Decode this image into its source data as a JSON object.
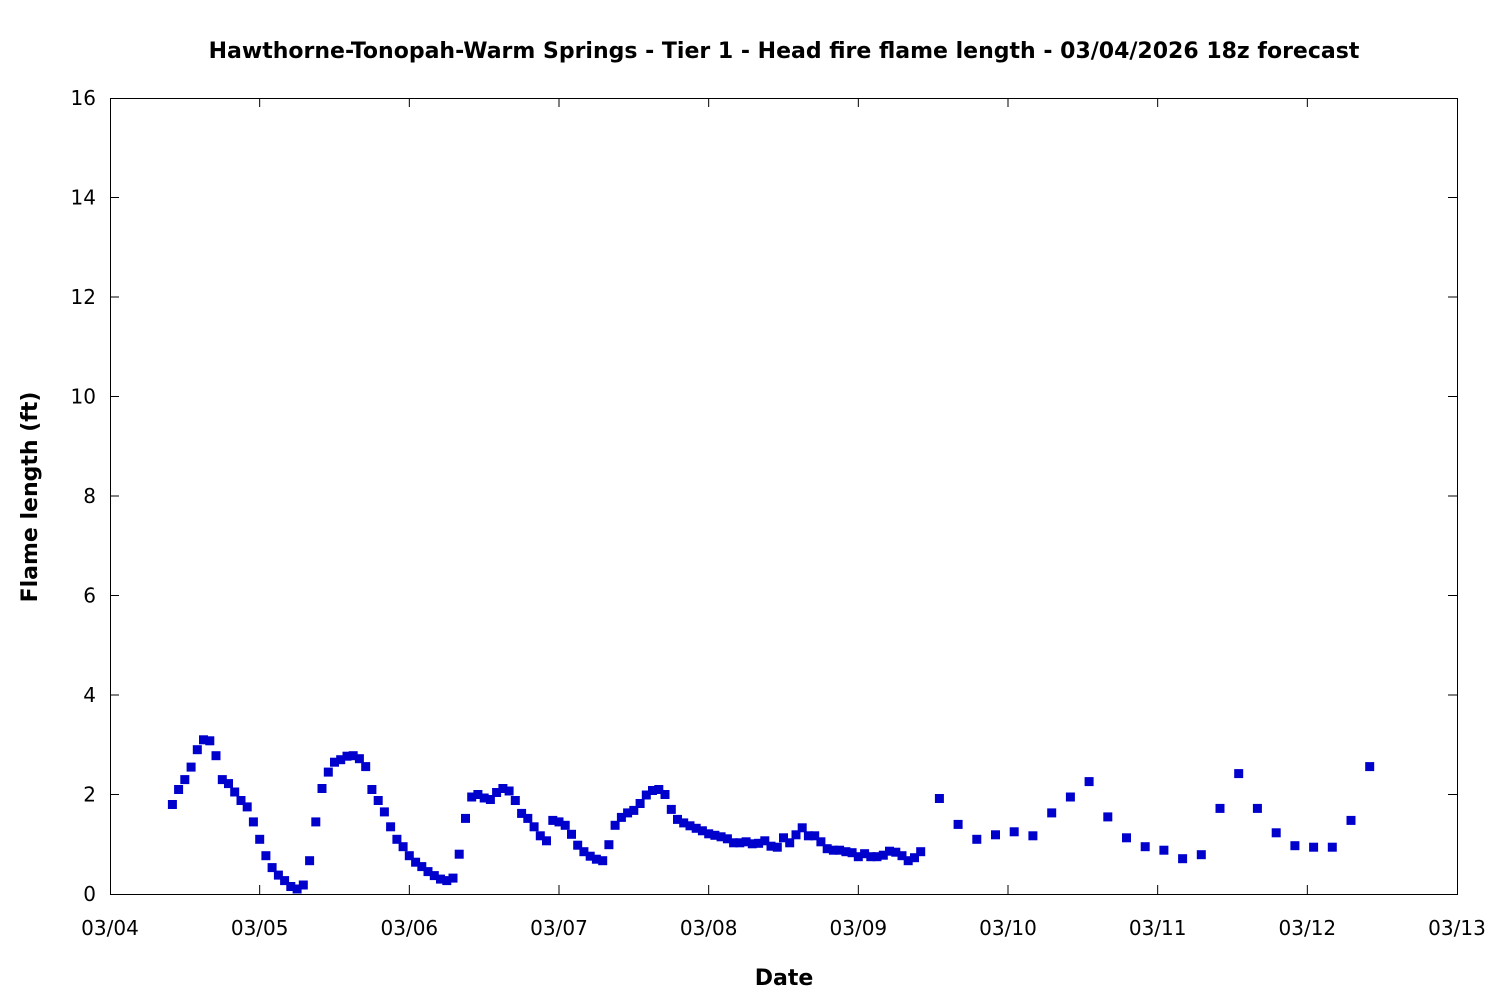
{
  "chart_data": {
    "type": "scatter",
    "title": "Hawthorne-Tonopah-Warm Springs - Tier 1 - Head fire flame length - 03/04/2026 18z forecast",
    "xlabel": "Date",
    "ylabel": "Flame length (ft)",
    "xlim": [
      "2026-03-04T00:00",
      "2026-03-13T00:00"
    ],
    "ylim": [
      0,
      16
    ],
    "x_ticks": [
      "03/04",
      "03/05",
      "03/06",
      "03/07",
      "03/08",
      "03/09",
      "03/10",
      "03/11",
      "03/12",
      "03/13"
    ],
    "y_ticks": [
      0,
      2,
      4,
      6,
      8,
      10,
      12,
      14,
      16
    ],
    "grid": false,
    "marker_color": "#0000cc",
    "series": [
      {
        "points": [
          [
            "2026-03-04T10:00",
            1.8
          ],
          [
            "2026-03-04T11:00",
            2.1
          ],
          [
            "2026-03-04T12:00",
            2.3
          ],
          [
            "2026-03-04T13:00",
            2.55
          ],
          [
            "2026-03-04T14:00",
            2.9
          ],
          [
            "2026-03-04T15:00",
            3.1
          ],
          [
            "2026-03-04T16:00",
            3.08
          ],
          [
            "2026-03-04T17:00",
            2.78
          ],
          [
            "2026-03-04T18:00",
            2.3
          ],
          [
            "2026-03-04T19:00",
            2.22
          ],
          [
            "2026-03-04T20:00",
            2.05
          ],
          [
            "2026-03-04T21:00",
            1.88
          ],
          [
            "2026-03-04T22:00",
            1.75
          ],
          [
            "2026-03-04T23:00",
            1.45
          ],
          [
            "2026-03-05T00:00",
            1.1
          ],
          [
            "2026-03-05T01:00",
            0.77
          ],
          [
            "2026-03-05T02:00",
            0.53
          ],
          [
            "2026-03-05T03:00",
            0.38
          ],
          [
            "2026-03-05T04:00",
            0.27
          ],
          [
            "2026-03-05T05:00",
            0.15
          ],
          [
            "2026-03-05T06:00",
            0.1
          ],
          [
            "2026-03-05T07:00",
            0.18
          ],
          [
            "2026-03-05T08:00",
            0.67
          ],
          [
            "2026-03-05T09:00",
            1.45
          ],
          [
            "2026-03-05T10:00",
            2.12
          ],
          [
            "2026-03-05T11:00",
            2.45
          ],
          [
            "2026-03-05T12:00",
            2.65
          ],
          [
            "2026-03-05T13:00",
            2.7
          ],
          [
            "2026-03-05T14:00",
            2.77
          ],
          [
            "2026-03-05T15:00",
            2.78
          ],
          [
            "2026-03-05T16:00",
            2.72
          ],
          [
            "2026-03-05T17:00",
            2.56
          ],
          [
            "2026-03-05T18:00",
            2.1
          ],
          [
            "2026-03-05T19:00",
            1.88
          ],
          [
            "2026-03-05T20:00",
            1.65
          ],
          [
            "2026-03-05T21:00",
            1.35
          ],
          [
            "2026-03-05T22:00",
            1.1
          ],
          [
            "2026-03-05T23:00",
            0.95
          ],
          [
            "2026-03-06T00:00",
            0.77
          ],
          [
            "2026-03-06T01:00",
            0.64
          ],
          [
            "2026-03-06T02:00",
            0.55
          ],
          [
            "2026-03-06T03:00",
            0.45
          ],
          [
            "2026-03-06T04:00",
            0.37
          ],
          [
            "2026-03-06T05:00",
            0.3
          ],
          [
            "2026-03-06T06:00",
            0.27
          ],
          [
            "2026-03-06T07:00",
            0.32
          ],
          [
            "2026-03-06T08:00",
            0.8
          ],
          [
            "2026-03-06T09:00",
            1.52
          ],
          [
            "2026-03-06T10:00",
            1.95
          ],
          [
            "2026-03-06T11:00",
            2.0
          ],
          [
            "2026-03-06T12:00",
            1.93
          ],
          [
            "2026-03-06T13:00",
            1.9
          ],
          [
            "2026-03-06T14:00",
            2.04
          ],
          [
            "2026-03-06T15:00",
            2.12
          ],
          [
            "2026-03-06T16:00",
            2.07
          ],
          [
            "2026-03-06T17:00",
            1.88
          ],
          [
            "2026-03-06T18:00",
            1.62
          ],
          [
            "2026-03-06T19:00",
            1.52
          ],
          [
            "2026-03-06T20:00",
            1.35
          ],
          [
            "2026-03-06T21:00",
            1.17
          ],
          [
            "2026-03-06T22:00",
            1.07
          ],
          [
            "2026-03-06T23:00",
            1.48
          ],
          [
            "2026-03-07T00:00",
            1.45
          ],
          [
            "2026-03-07T01:00",
            1.38
          ],
          [
            "2026-03-07T02:00",
            1.2
          ],
          [
            "2026-03-07T03:00",
            0.98
          ],
          [
            "2026-03-07T04:00",
            0.85
          ],
          [
            "2026-03-07T05:00",
            0.76
          ],
          [
            "2026-03-07T06:00",
            0.7
          ],
          [
            "2026-03-07T07:00",
            0.67
          ],
          [
            "2026-03-07T08:00",
            0.99
          ],
          [
            "2026-03-07T09:00",
            1.38
          ],
          [
            "2026-03-07T10:00",
            1.54
          ],
          [
            "2026-03-07T11:00",
            1.63
          ],
          [
            "2026-03-07T12:00",
            1.68
          ],
          [
            "2026-03-07T13:00",
            1.82
          ],
          [
            "2026-03-07T14:00",
            1.99
          ],
          [
            "2026-03-07T15:00",
            2.08
          ],
          [
            "2026-03-07T16:00",
            2.1
          ],
          [
            "2026-03-07T17:00",
            2.0
          ],
          [
            "2026-03-07T18:00",
            1.7
          ],
          [
            "2026-03-07T19:00",
            1.5
          ],
          [
            "2026-03-07T20:00",
            1.43
          ],
          [
            "2026-03-07T21:00",
            1.37
          ],
          [
            "2026-03-07T22:00",
            1.32
          ],
          [
            "2026-03-07T23:00",
            1.27
          ],
          [
            "2026-03-08T00:00",
            1.21
          ],
          [
            "2026-03-08T01:00",
            1.18
          ],
          [
            "2026-03-08T02:00",
            1.15
          ],
          [
            "2026-03-08T03:00",
            1.11
          ],
          [
            "2026-03-08T04:00",
            1.03
          ],
          [
            "2026-03-08T05:00",
            1.03
          ],
          [
            "2026-03-08T06:00",
            1.05
          ],
          [
            "2026-03-08T07:00",
            1.01
          ],
          [
            "2026-03-08T08:00",
            1.02
          ],
          [
            "2026-03-08T09:00",
            1.07
          ],
          [
            "2026-03-08T10:00",
            0.96
          ],
          [
            "2026-03-08T11:00",
            0.94
          ],
          [
            "2026-03-08T12:00",
            1.13
          ],
          [
            "2026-03-08T13:00",
            1.03
          ],
          [
            "2026-03-08T14:00",
            1.19
          ],
          [
            "2026-03-08T15:00",
            1.33
          ],
          [
            "2026-03-08T16:00",
            1.17
          ],
          [
            "2026-03-08T17:00",
            1.17
          ],
          [
            "2026-03-08T18:00",
            1.05
          ],
          [
            "2026-03-08T19:00",
            0.91
          ],
          [
            "2026-03-08T20:00",
            0.88
          ],
          [
            "2026-03-08T21:00",
            0.88
          ],
          [
            "2026-03-08T22:00",
            0.85
          ],
          [
            "2026-03-08T23:00",
            0.83
          ],
          [
            "2026-03-09T00:00",
            0.75
          ],
          [
            "2026-03-09T01:00",
            0.81
          ],
          [
            "2026-03-09T02:00",
            0.75
          ],
          [
            "2026-03-09T03:00",
            0.75
          ],
          [
            "2026-03-09T04:00",
            0.78
          ],
          [
            "2026-03-09T05:00",
            0.86
          ],
          [
            "2026-03-09T06:00",
            0.84
          ],
          [
            "2026-03-09T07:00",
            0.77
          ],
          [
            "2026-03-09T08:00",
            0.67
          ],
          [
            "2026-03-09T09:00",
            0.73
          ],
          [
            "2026-03-09T10:00",
            0.85
          ],
          [
            "2026-03-09T13:00",
            1.92
          ],
          [
            "2026-03-09T16:00",
            1.4
          ],
          [
            "2026-03-09T19:00",
            1.1
          ],
          [
            "2026-03-09T22:00",
            1.19
          ],
          [
            "2026-03-10T01:00",
            1.25
          ],
          [
            "2026-03-10T04:00",
            1.17
          ],
          [
            "2026-03-10T07:00",
            1.63
          ],
          [
            "2026-03-10T10:00",
            1.95
          ],
          [
            "2026-03-10T13:00",
            2.26
          ],
          [
            "2026-03-10T16:00",
            1.55
          ],
          [
            "2026-03-10T19:00",
            1.13
          ],
          [
            "2026-03-10T22:00",
            0.95
          ],
          [
            "2026-03-11T01:00",
            0.88
          ],
          [
            "2026-03-11T04:00",
            0.71
          ],
          [
            "2026-03-11T07:00",
            0.79
          ],
          [
            "2026-03-11T10:00",
            1.72
          ],
          [
            "2026-03-11T13:00",
            2.42
          ],
          [
            "2026-03-11T16:00",
            1.72
          ],
          [
            "2026-03-11T19:00",
            1.23
          ],
          [
            "2026-03-11T22:00",
            0.97
          ],
          [
            "2026-03-12T01:00",
            0.94
          ],
          [
            "2026-03-12T04:00",
            0.94
          ],
          [
            "2026-03-12T07:00",
            1.48
          ],
          [
            "2026-03-12T10:00",
            2.56
          ]
        ]
      }
    ]
  }
}
